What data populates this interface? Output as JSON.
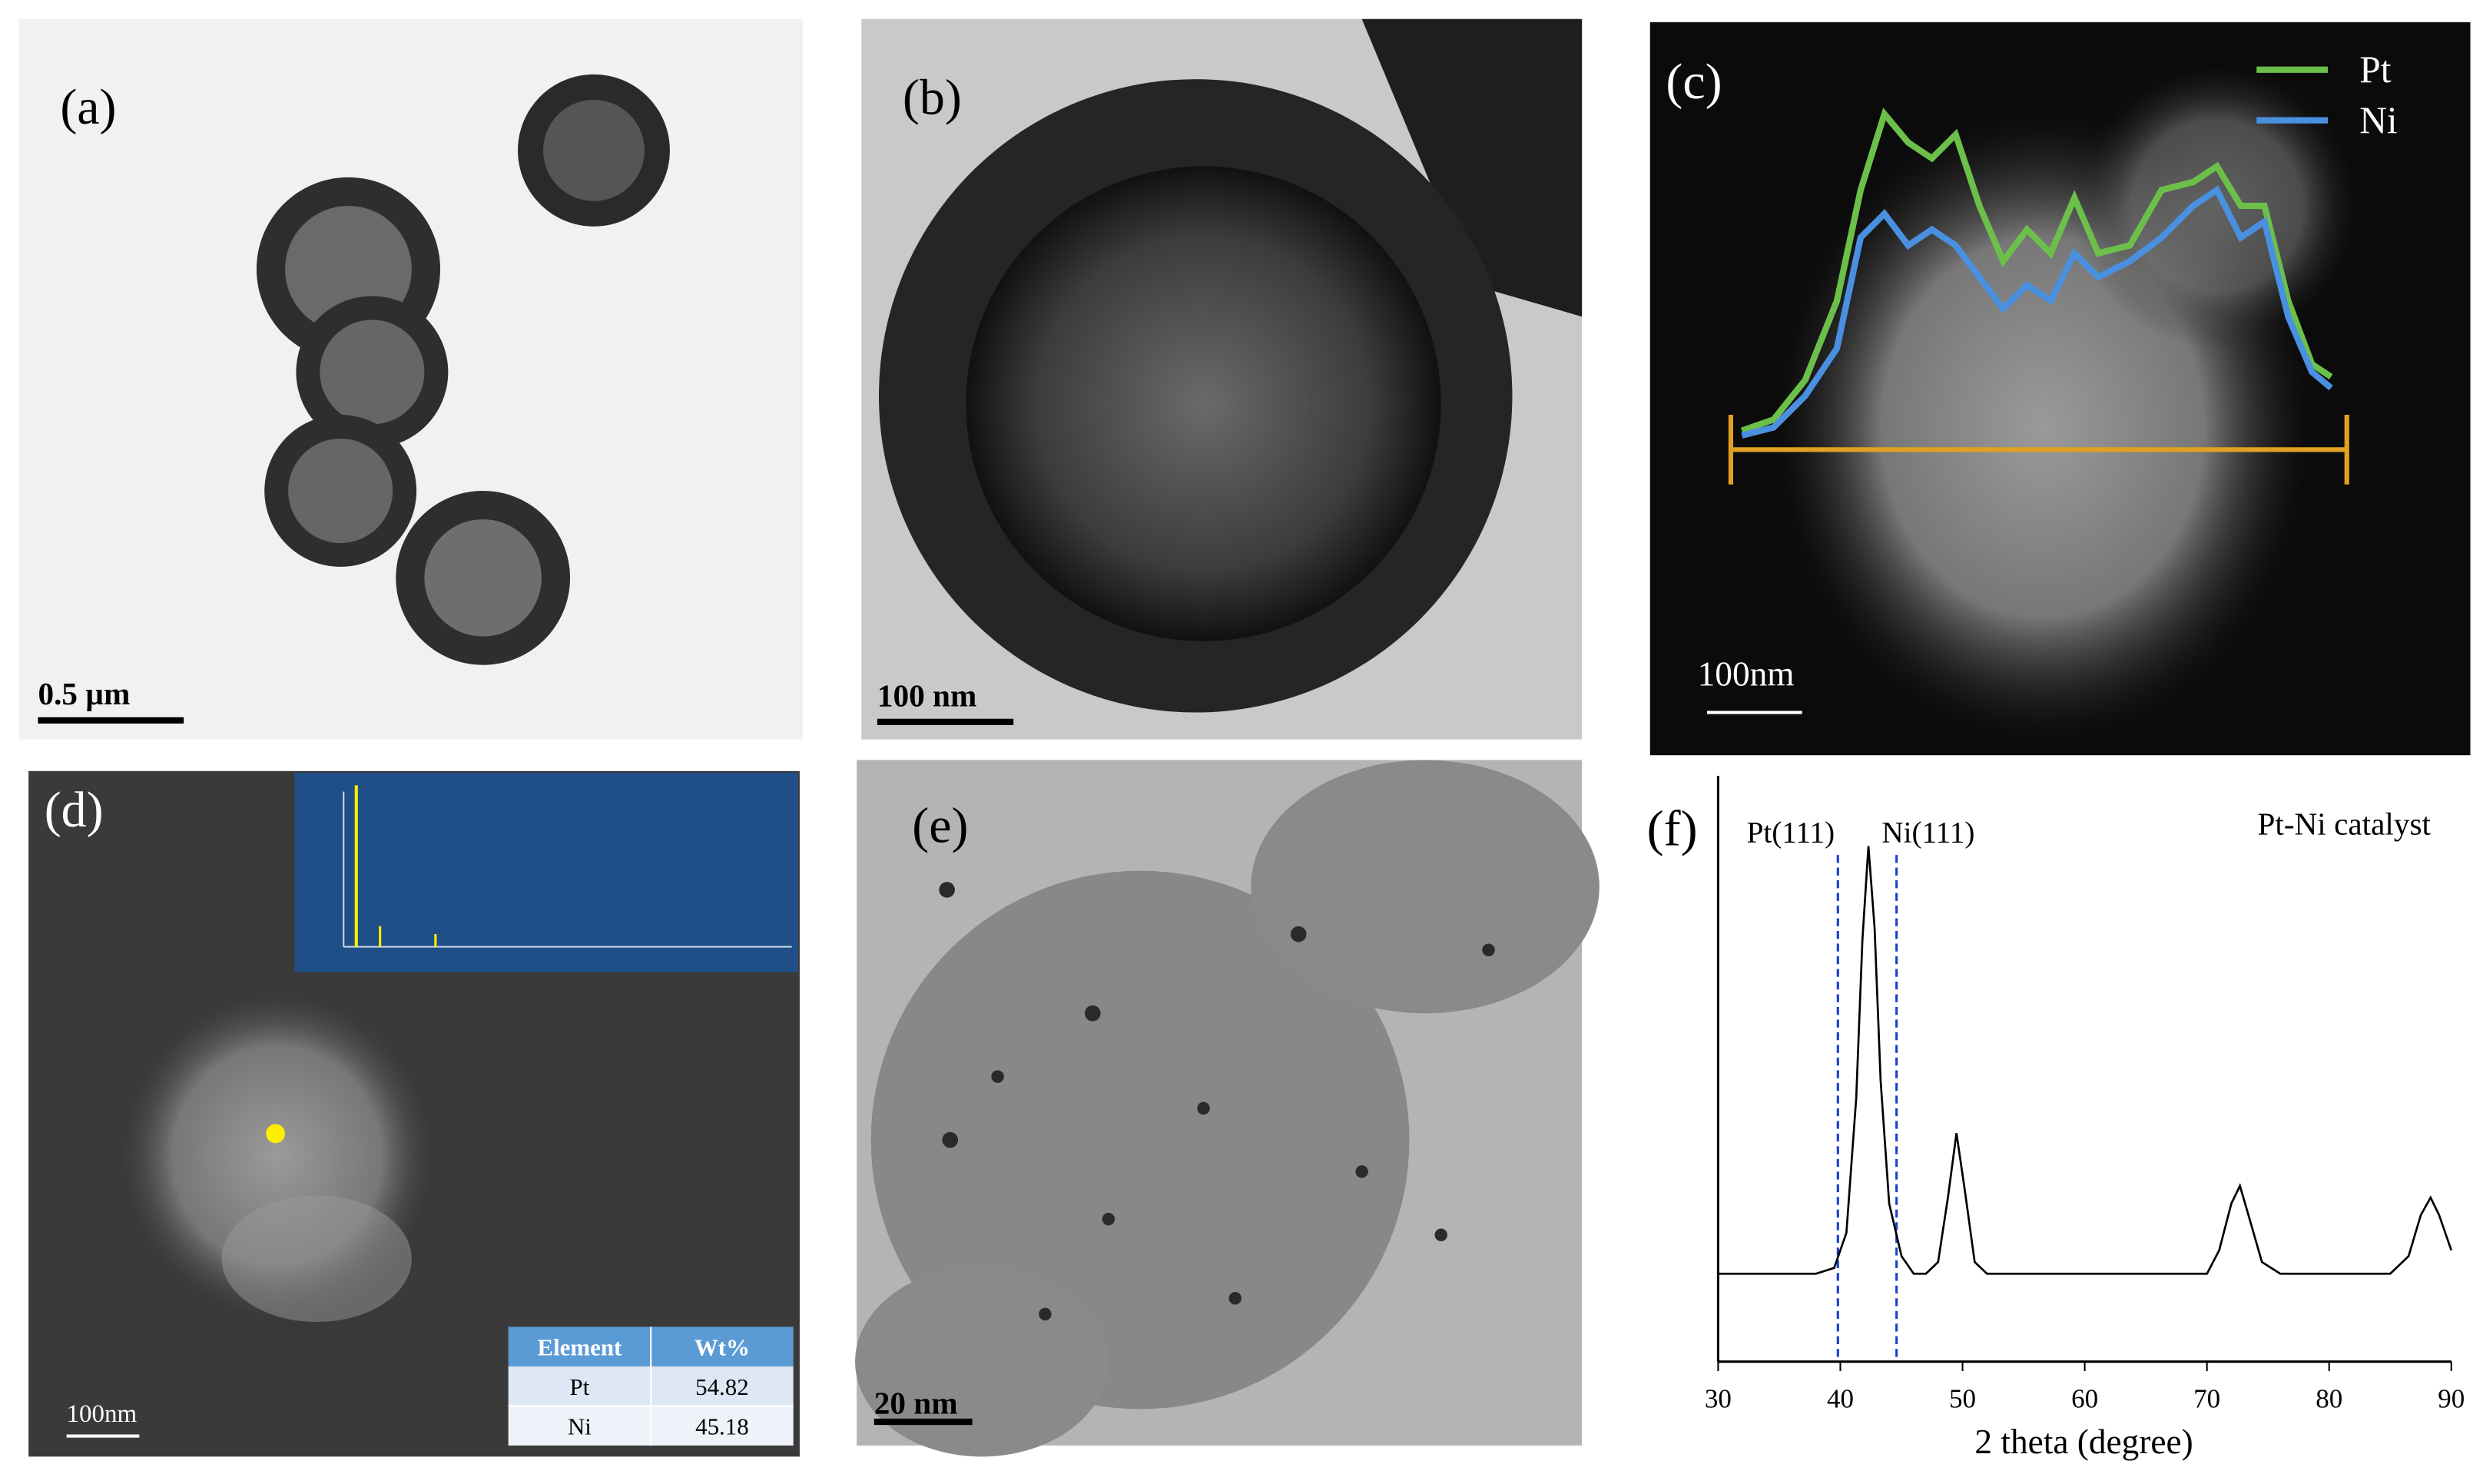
{
  "panels": [
    {
      "label": "(a)",
      "scale_bar": "0.5 µm"
    },
    {
      "label": "(b)",
      "scale_bar": "100 nm"
    },
    {
      "label": "(c)",
      "scale_bar": "100nm",
      "legend": [
        "Pt",
        "Ni"
      ]
    },
    {
      "label": "(d)",
      "scale_bar": "100nm",
      "table": {
        "header": [
          "Element",
          "Wt%"
        ],
        "rows": [
          [
            "Pt",
            54.82
          ],
          [
            "Ni",
            45.18
          ]
        ]
      }
    },
    {
      "label": "(e)",
      "scale_bar": "20 nm"
    }
  ],
  "chart_data": {
    "type": "line",
    "label": "(f)",
    "annotation": "Pt-Ni catalyst",
    "x_label": "2 theta (degree)",
    "x": [
      30,
      35,
      38,
      39.5,
      40.5,
      41.3,
      41.8,
      42.3,
      42.8,
      43.3,
      44,
      45,
      46,
      47,
      48,
      48.8,
      49.5,
      50.2,
      51,
      52,
      60,
      70,
      71,
      72,
      72.7,
      73.4,
      74.5,
      76,
      85,
      86.5,
      87.5,
      88.3,
      89,
      90
    ],
    "values": [
      15,
      15,
      15,
      16,
      22,
      45,
      72,
      88,
      74,
      48,
      27,
      18,
      15,
      15,
      17,
      28,
      39,
      29,
      17,
      15,
      15,
      15,
      19,
      27,
      30,
      25,
      17,
      15,
      15,
      18,
      25,
      28,
      25,
      19
    ],
    "color": "#000000",
    "xlim": [
      30,
      90
    ],
    "xticks": [
      30,
      40,
      50,
      60,
      70,
      80,
      90
    ],
    "ylim": [
      0,
      100
    ],
    "ref_lines": [
      {
        "value": 39.8,
        "label": "Pt(111)"
      },
      {
        "value": 44.6,
        "label": "Ni(111)"
      }
    ],
    "ref_color": "#1a3fcf"
  }
}
